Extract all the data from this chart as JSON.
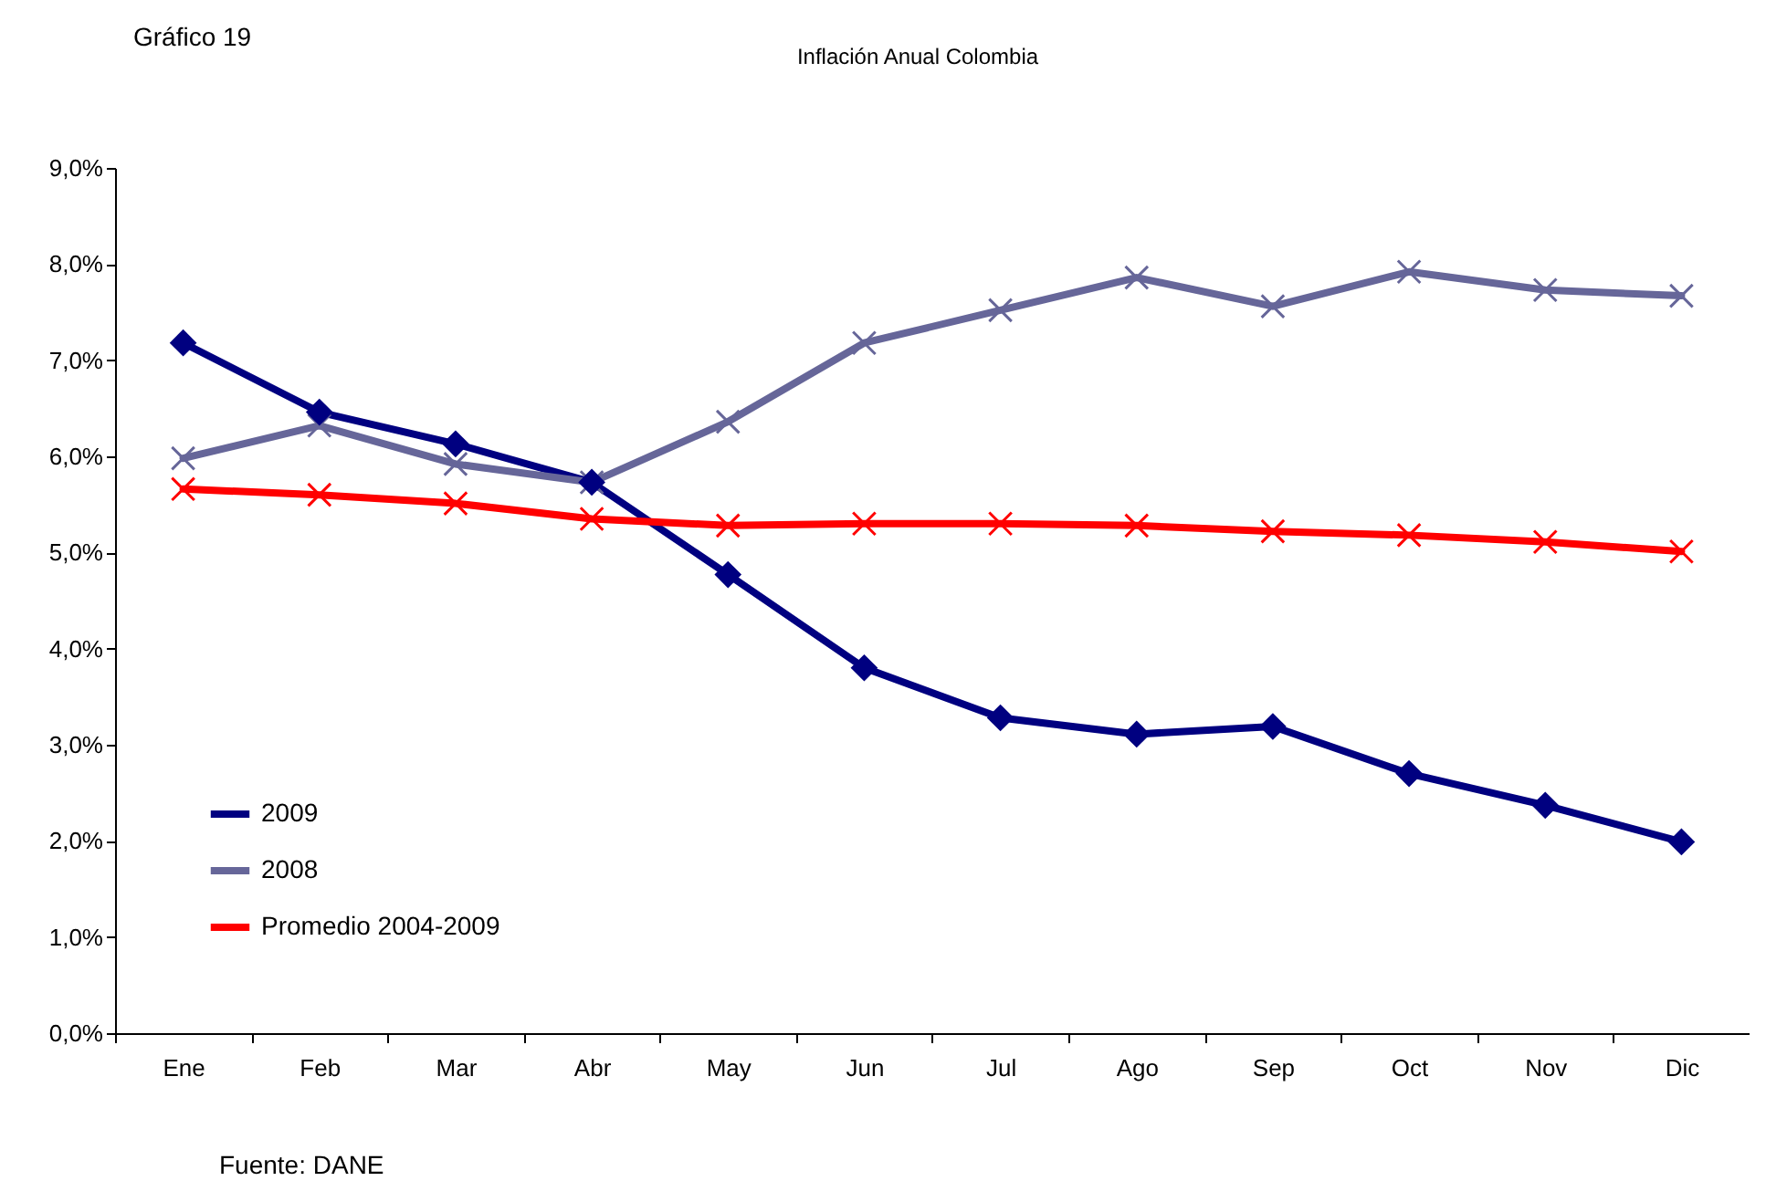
{
  "chart_data": {
    "type": "line",
    "title": "Inflación Anual Colombia",
    "annotations": [
      "Gráfico 19",
      "Fuente: DANE"
    ],
    "categories": [
      "Ene",
      "Feb",
      "Mar",
      "Abr",
      "May",
      "Jun",
      "Jul",
      "Ago",
      "Sep",
      "Oct",
      "Nov",
      "Dic"
    ],
    "series": [
      {
        "name": "2009",
        "color": "#000080",
        "marker": "diamond",
        "values": [
          7.18,
          6.46,
          6.13,
          5.73,
          4.77,
          3.8,
          3.28,
          3.11,
          3.19,
          2.7,
          2.37,
          1.99
        ]
      },
      {
        "name": "2008",
        "color": "#666699",
        "marker": "cross",
        "values": [
          5.98,
          6.32,
          5.92,
          5.73,
          6.36,
          7.18,
          7.52,
          7.86,
          7.56,
          7.92,
          7.73,
          7.67
        ]
      },
      {
        "name": "Promedio 2004-2009",
        "color": "#ff0000",
        "marker": "cross",
        "values": [
          5.66,
          5.6,
          5.51,
          5.35,
          5.28,
          5.3,
          5.3,
          5.28,
          5.22,
          5.18,
          5.11,
          5.01
        ]
      }
    ],
    "ylim": [
      0,
      9
    ],
    "yticks": [
      {
        "value": 0,
        "label": "0,0%"
      },
      {
        "value": 1,
        "label": "1,0%"
      },
      {
        "value": 2,
        "label": "2,0%"
      },
      {
        "value": 3,
        "label": "3,0%"
      },
      {
        "value": 4,
        "label": "4,0%"
      },
      {
        "value": 5,
        "label": "5,0%"
      },
      {
        "value": 6,
        "label": "6,0%"
      },
      {
        "value": 7,
        "label": "7,0%"
      },
      {
        "value": 8,
        "label": "8,0%"
      },
      {
        "value": 9,
        "label": "9,0%"
      }
    ],
    "grid": false,
    "legend": "bottom left",
    "line_style": "solid"
  }
}
